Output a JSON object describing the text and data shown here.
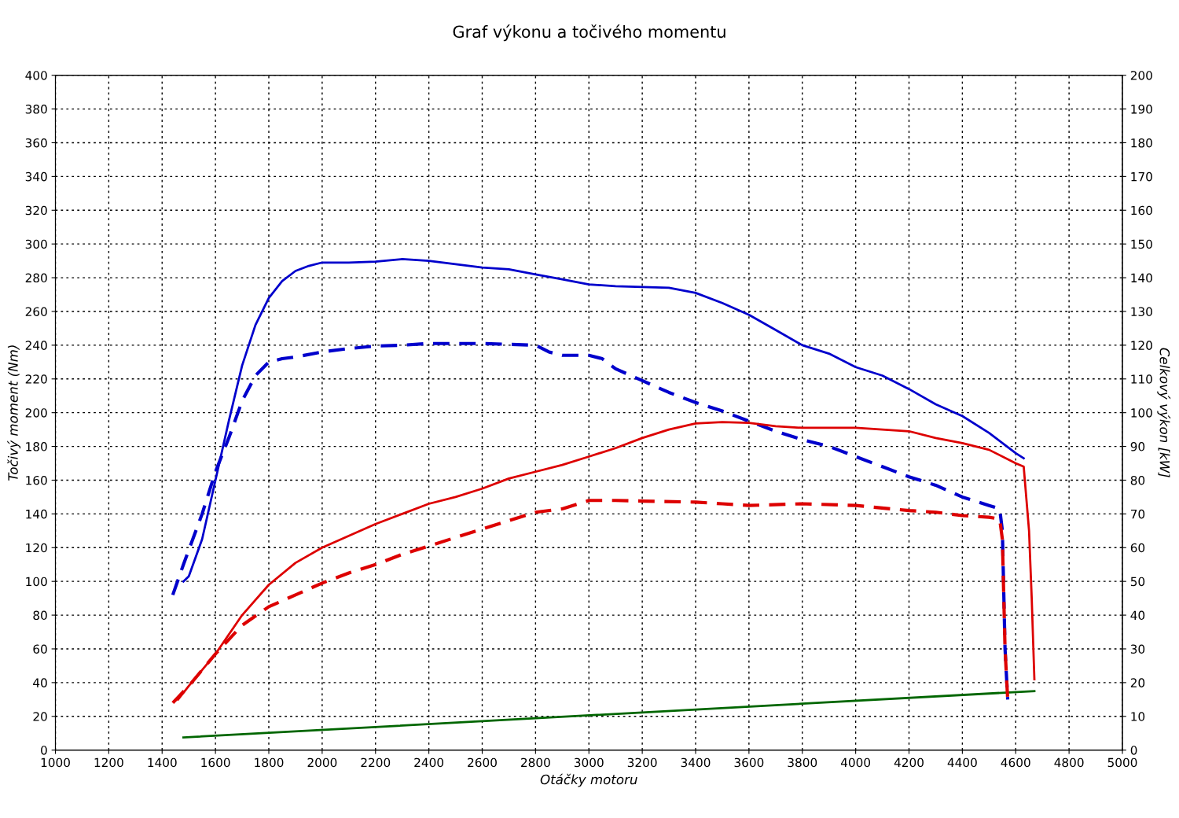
{
  "chart_data": {
    "type": "line",
    "title": "Graf výkonu a točivého momentu",
    "xlabel": "Otáčky motoru",
    "ylabel": "Točivý moment (Nm)",
    "y2label": "Celkový výkon [kW]",
    "xlim": [
      1000,
      5000
    ],
    "xticks": [
      1000,
      1200,
      1400,
      1600,
      1800,
      2000,
      2200,
      2400,
      2600,
      2800,
      3000,
      3200,
      3400,
      3600,
      3800,
      4000,
      4200,
      4400,
      4600,
      4800,
      5000
    ],
    "ylim": [
      0,
      400
    ],
    "yticks": [
      0,
      20,
      40,
      60,
      80,
      100,
      120,
      140,
      160,
      180,
      200,
      220,
      240,
      260,
      280,
      300,
      320,
      340,
      360,
      380,
      400
    ],
    "y2lim": [
      0,
      200
    ],
    "y2ticks": [
      0,
      10,
      20,
      30,
      40,
      50,
      60,
      70,
      80,
      90,
      100,
      110,
      120,
      130,
      140,
      150,
      160,
      170,
      180,
      190,
      200
    ],
    "grid": true,
    "marker": "none",
    "series": [
      {
        "color": "#0000cc",
        "axis": "y",
        "line_style": "solid",
        "x": [
          1480,
          1500,
          1550,
          1600,
          1650,
          1700,
          1750,
          1800,
          1850,
          1900,
          1950,
          2000,
          2100,
          2200,
          2300,
          2400,
          2500,
          2600,
          2700,
          2800,
          2900,
          3000,
          3100,
          3200,
          3300,
          3400,
          3500,
          3600,
          3700,
          3800,
          3900,
          4000,
          4100,
          4200,
          4300,
          4400,
          4500,
          4600,
          4630
        ],
        "values": [
          100,
          103,
          125,
          160,
          195,
          228,
          252,
          268,
          278,
          284,
          287,
          289,
          289,
          289.5,
          291,
          290,
          288,
          286,
          285,
          282,
          279,
          276,
          275,
          274.5,
          274,
          271,
          265,
          258,
          249,
          240,
          235,
          227,
          222,
          214,
          205,
          198,
          188,
          176,
          173
        ]
      },
      {
        "color": "#0000cc",
        "axis": "y",
        "line_style": "dashed",
        "x": [
          1440,
          1480,
          1550,
          1600,
          1650,
          1700,
          1750,
          1800,
          1850,
          1900,
          2000,
          2100,
          2200,
          2300,
          2400,
          2500,
          2600,
          2700,
          2800,
          2850,
          2900,
          3000,
          3050,
          3100,
          3200,
          3300,
          3400,
          3500,
          3600,
          3700,
          3800,
          3900,
          4000,
          4100,
          4200,
          4300,
          4400,
          4500,
          4540,
          4550,
          4560,
          4570
        ],
        "values": [
          92,
          110,
          140,
          165,
          185,
          207,
          222,
          230,
          232,
          233,
          236,
          238,
          239.5,
          240,
          241,
          241,
          241,
          240.5,
          240,
          236,
          234,
          234,
          232,
          226,
          219,
          212,
          206,
          201,
          195,
          189,
          184,
          180,
          174,
          168,
          162,
          157,
          150,
          145,
          143,
          130,
          60,
          30
        ]
      },
      {
        "color": "#dd0000",
        "axis": "y2",
        "line_style": "solid",
        "x": [
          1460,
          1500,
          1600,
          1700,
          1800,
          1900,
          2000,
          2100,
          2200,
          2300,
          2400,
          2500,
          2600,
          2700,
          2800,
          2900,
          3000,
          3100,
          3200,
          3300,
          3400,
          3500,
          3600,
          3700,
          3800,
          3900,
          4000,
          4100,
          4200,
          4300,
          4400,
          4500,
          4600,
          4630,
          4650,
          4660,
          4670
        ],
        "values": [
          15,
          19,
          28.5,
          40,
          49,
          55.5,
          60,
          63.5,
          67,
          70,
          73,
          75,
          77.5,
          80.5,
          82.5,
          84.5,
          87,
          89.5,
          92.5,
          95,
          96.8,
          97.2,
          97,
          96,
          95.5,
          95.5,
          95.5,
          95,
          94.5,
          92.5,
          91,
          89,
          85,
          84,
          65,
          45,
          21
        ]
      },
      {
        "color": "#dd0000",
        "axis": "y2",
        "line_style": "dashed",
        "x": [
          1440,
          1500,
          1600,
          1700,
          1800,
          1900,
          2000,
          2100,
          2200,
          2300,
          2400,
          2500,
          2600,
          2700,
          2800,
          2900,
          3000,
          3100,
          3200,
          3400,
          3500,
          3600,
          3800,
          4000,
          4200,
          4300,
          4400,
          4500,
          4540,
          4550,
          4560,
          4570
        ],
        "values": [
          14,
          19,
          28.5,
          37,
          42.5,
          46,
          49.5,
          52.5,
          55,
          58,
          60.5,
          63,
          65.5,
          68,
          70.5,
          71.5,
          74,
          74,
          73.8,
          73.5,
          73,
          72.5,
          73,
          72.5,
          71,
          70.5,
          69.5,
          69,
          68.5,
          62.5,
          30,
          15
        ]
      },
      {
        "color": "#006600",
        "axis": "y",
        "line_style": "solid",
        "x": [
          1480,
          4670
        ],
        "values": [
          7.5,
          35
        ]
      }
    ]
  }
}
